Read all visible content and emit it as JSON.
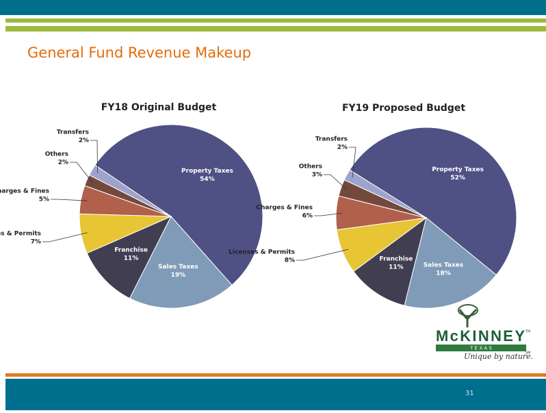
{
  "title": "General Fund Revenue Makeup",
  "chart_data": [
    {
      "type": "pie",
      "title": "FY18 Original Budget",
      "categories": [
        "Property Taxes",
        "Sales Taxes",
        "Franchise",
        "Licenses & Permits",
        "Charges & Fines",
        "Others",
        "Transfers"
      ],
      "values": [
        54,
        19,
        11,
        7,
        5,
        2,
        2
      ],
      "value_labels": [
        "54%",
        "19%",
        "11%",
        "7%",
        "5%",
        "2%",
        "2%"
      ],
      "colors": [
        "#4f5184",
        "#7f9bb8",
        "#413e52",
        "#e8c535",
        "#b0604b",
        "#74493d",
        "#9ea3cc"
      ]
    },
    {
      "type": "pie",
      "title": "FY19 Proposed Budget",
      "categories": [
        "Property Taxes",
        "Sales Taxes",
        "Franchise",
        "Licenses & Permits",
        "Charges & Fines",
        "Others",
        "Transfers"
      ],
      "values": [
        52,
        18,
        11,
        8,
        6,
        3,
        2
      ],
      "value_labels": [
        "52%",
        "18%",
        "11%",
        "8%",
        "6%",
        "3%",
        "2%"
      ],
      "colors": [
        "#4f5184",
        "#7f9bb8",
        "#413e52",
        "#e8c535",
        "#b0604b",
        "#74493d",
        "#9ea3cc"
      ]
    }
  ],
  "logo": {
    "name": "McKINNEY",
    "trademark": "TM",
    "state": "T E X A S",
    "tagline": "Unique by nature.",
    "service_mark": "SM"
  },
  "page_number": "31"
}
